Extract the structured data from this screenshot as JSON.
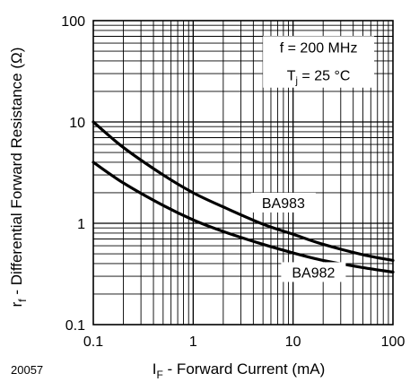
{
  "chart_data": {
    "type": "line",
    "x_scale": "log",
    "y_scale": "log",
    "xlim": [
      0.1,
      100
    ],
    "ylim": [
      0.1,
      100
    ],
    "xlabel": {
      "symbol": "I",
      "subscript": "F",
      "text": " - Forward Current (mA)"
    },
    "ylabel": {
      "symbol": "r",
      "subscript": "f",
      "text": " - Differential Forward Resistance (Ω)"
    },
    "x_ticks": [
      {
        "value": 0.1,
        "label": "0.1"
      },
      {
        "value": 1,
        "label": "1"
      },
      {
        "value": 10,
        "label": "10"
      },
      {
        "value": 100,
        "label": "100"
      }
    ],
    "y_ticks": [
      {
        "value": 0.1,
        "label": "0.1"
      },
      {
        "value": 1,
        "label": "1"
      },
      {
        "value": 10,
        "label": "10"
      },
      {
        "value": 100,
        "label": "100"
      }
    ],
    "grid": true,
    "series": [
      {
        "name": "BA983",
        "x": [
          0.1,
          0.2,
          0.5,
          1,
          2,
          5,
          10,
          20,
          50,
          100
        ],
        "y": [
          10,
          5.6,
          3.0,
          2.0,
          1.45,
          0.98,
          0.78,
          0.62,
          0.49,
          0.43
        ]
      },
      {
        "name": "BA982",
        "x": [
          0.1,
          0.2,
          0.5,
          1,
          2,
          5,
          10,
          20,
          50,
          100
        ],
        "y": [
          4.0,
          2.5,
          1.5,
          1.08,
          0.83,
          0.62,
          0.51,
          0.43,
          0.365,
          0.33
        ]
      }
    ],
    "annotation": {
      "line1": "f = 200 MHz",
      "line2_symbol": "T",
      "line2_subscript": "j",
      "line2_text": " = 25 °C"
    },
    "figure_id": "20057"
  }
}
